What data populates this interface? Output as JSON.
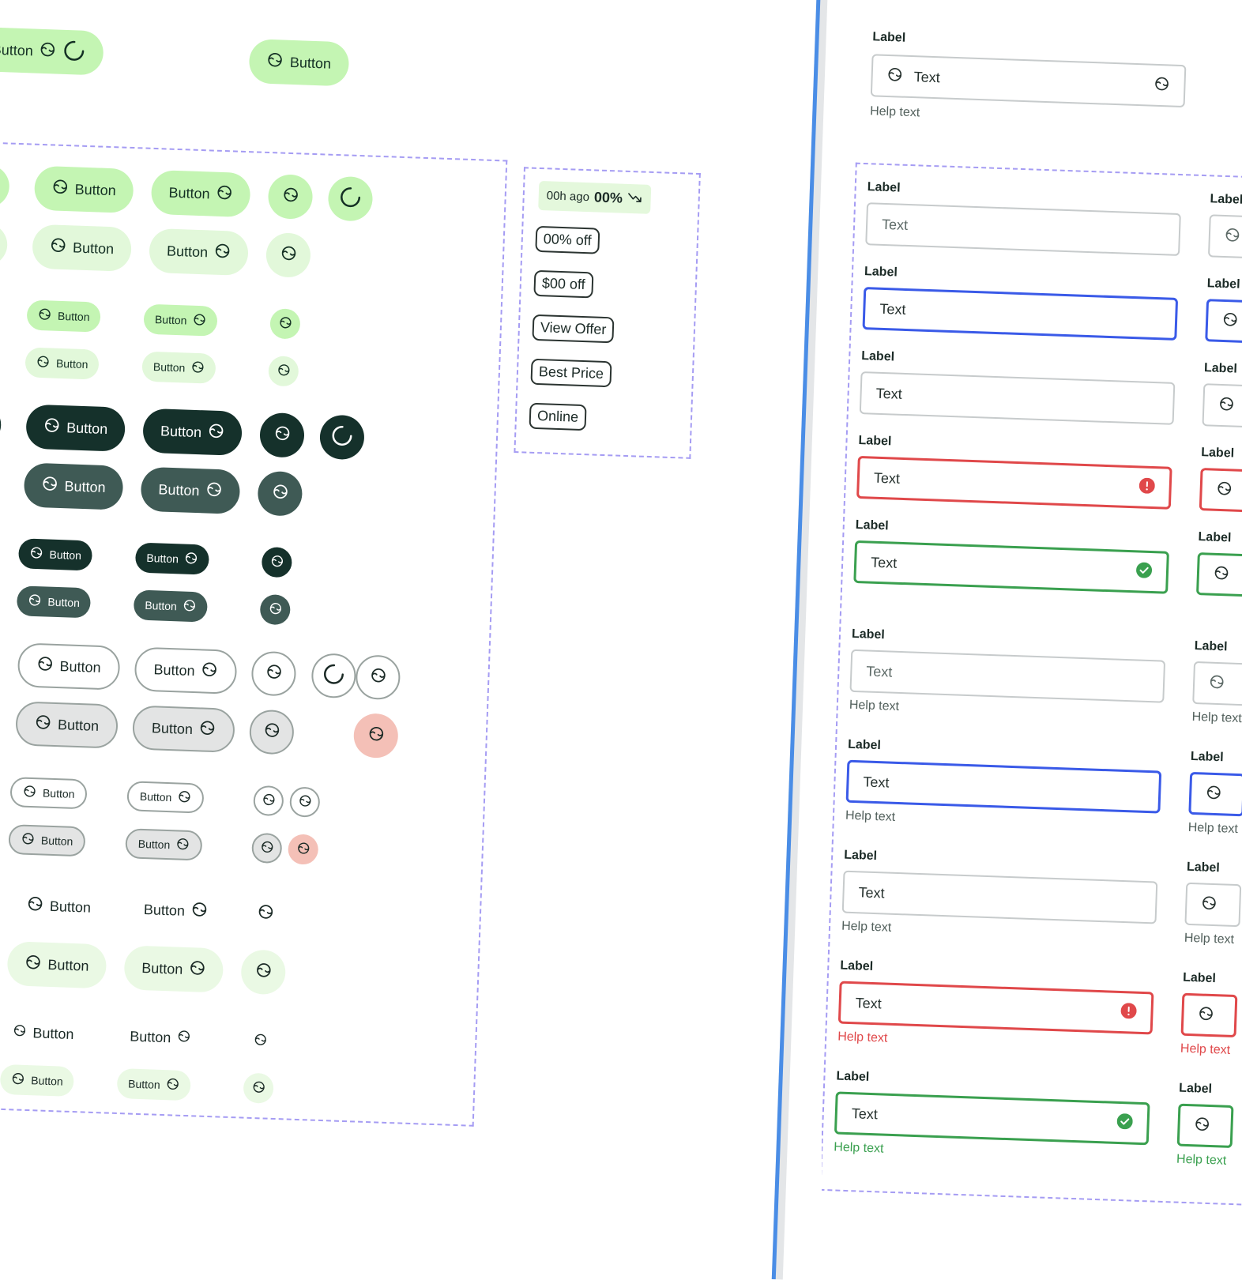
{
  "buttons": {
    "label": "Button",
    "icon_name": "smiley-icon",
    "spinner_name": "loading-spinner-icon"
  },
  "chips": {
    "trend_time": "00h ago",
    "trend_value": "00%",
    "items": [
      "00% off",
      "$00 off",
      "View Offer",
      "Best Price",
      "Online"
    ]
  },
  "fields": {
    "label": "Label",
    "value": "Text",
    "help": "Help text"
  },
  "colors": {
    "primary_green": "#c4f5b3",
    "primary_dark": "#15312b",
    "focus_blue": "#3a5ae8",
    "error_red": "#e0484a",
    "success_green": "#3aa04f",
    "spec_outline": "#a59cf3",
    "frame_divider": "#4a8de6"
  }
}
